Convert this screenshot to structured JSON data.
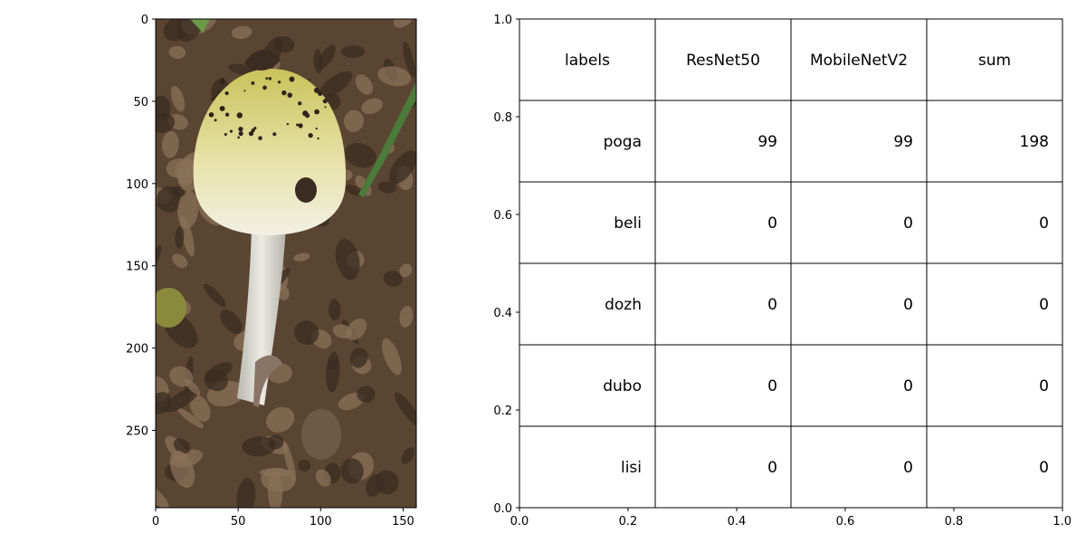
{
  "image_panel": {
    "description_icon": "mushroom-photo",
    "xlim": [
      0,
      158
    ],
    "ylim": [
      297,
      0
    ],
    "xticks": [
      0,
      50,
      100,
      150
    ],
    "yticks": [
      0,
      50,
      100,
      150,
      200,
      250
    ],
    "colors": {
      "cap_top": "#c9c25a",
      "cap_bottom": "#f2f0e4",
      "stem": "#dcdcd4",
      "ground": "#5a4532",
      "leaf_light": "#8a7058",
      "leaf_dark": "#3a2c20",
      "grass": "#4c7a3a"
    }
  },
  "chart_data": {
    "type": "table",
    "columns": [
      "labels",
      "ResNet50",
      "MobileNetV2",
      "sum"
    ],
    "rows": [
      [
        "poga",
        "99",
        "99",
        "198"
      ],
      [
        "beli",
        "0",
        "0",
        "0"
      ],
      [
        "dozh",
        "0",
        "0",
        "0"
      ],
      [
        "dubo",
        "0",
        "0",
        "0"
      ],
      [
        "lisi",
        "0",
        "0",
        "0"
      ]
    ],
    "xlim": [
      0,
      1
    ],
    "ylim": [
      0,
      1
    ],
    "xticks": [
      0.0,
      0.2,
      0.4,
      0.6,
      0.8,
      1.0
    ],
    "yticks": [
      0.0,
      0.2,
      0.4,
      0.6,
      0.8,
      1.0
    ],
    "grid": false
  }
}
